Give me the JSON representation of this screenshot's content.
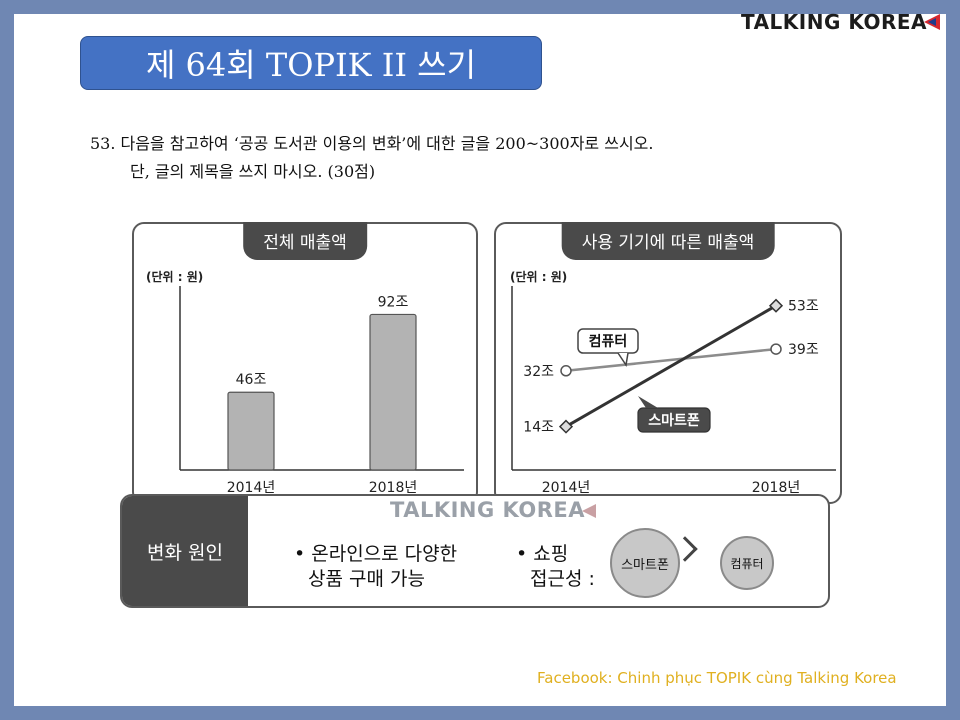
{
  "brand": "TALKING KOREA",
  "title": "제 64회 TOPIK II 쓰기",
  "question": {
    "line1": "53. 다음을 참고하여 ‘공공 도서관 이용의 변화’에 대한 글을 200~300자로 쓰시오.",
    "line2": "단, 글의 제목을 쓰지 마시오. (30점)"
  },
  "chart_data": [
    {
      "type": "bar",
      "title": "전체 매출액",
      "unit_label": "(단위 : 원)",
      "categories": [
        "2014년",
        "2018년"
      ],
      "values": [
        46,
        92
      ],
      "data_labels": [
        "46조",
        "92조"
      ],
      "ylim": [
        0,
        110
      ]
    },
    {
      "type": "line",
      "title": "사용 기기에 따른 매출액",
      "unit_label": "(단위 : 원)",
      "categories": [
        "2014년",
        "2018년"
      ],
      "ylim": [
        0,
        60
      ],
      "series": [
        {
          "name": "컴퓨터",
          "values": [
            32,
            39
          ],
          "data_labels": [
            "32조",
            "39조"
          ],
          "marker": "circle",
          "color": "#8c8c8c"
        },
        {
          "name": "스마트폰",
          "values": [
            14,
            53
          ],
          "data_labels": [
            "14조",
            "53조"
          ],
          "marker": "diamond",
          "color": "#333333"
        }
      ]
    }
  ],
  "cause": {
    "label": "변화 원인",
    "watermark": "TALKING KOREA",
    "bullet1_line1": "• 온라인으로 다양한",
    "bullet1_line2": "상품 구매 가능",
    "bullet2_line1": "• 쇼핑",
    "bullet2_line2": "접근성 :",
    "big_circle": "스마트폰",
    "small_circle": "컴퓨터"
  },
  "footer": "Facebook: Chinh phục TOPIK cùng Talking Korea"
}
